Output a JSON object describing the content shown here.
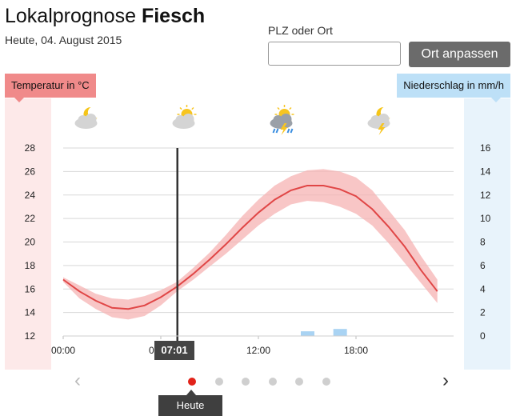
{
  "header": {
    "title_prefix": "Lokalprognose",
    "title_place": "Fiesch",
    "date": "Heute, 04. August 2015"
  },
  "search": {
    "label": "PLZ oder Ort",
    "value": "",
    "placeholder": "",
    "button_label": "Ort anpassen"
  },
  "axes": {
    "left_label": "Temperatur in °C",
    "right_label": "Niederschlag in mm/h",
    "now_time": "07:01"
  },
  "weather_icons": [
    {
      "name": "moon-cloud-icon",
      "hour": 1.5
    },
    {
      "name": "sun-cloud-icon",
      "hour": 7.5
    },
    {
      "name": "thunderstorm-rain-icon",
      "hour": 13.5
    },
    {
      "name": "moon-lightning-icon",
      "hour": 19.5
    }
  ],
  "pager": {
    "dots": 6,
    "active": 0,
    "active_label": "Heute"
  },
  "colors": {
    "temp_line": "#e04646",
    "temp_band": "#f5b3b3",
    "precip_bar": "#a9d3f3",
    "now_line": "#333333",
    "dot_active": "#e2231a"
  },
  "chart_data": {
    "type": "line",
    "x_unit": "hour",
    "x_ticks": [
      {
        "hour": 0,
        "label": "00:00"
      },
      {
        "hour": 6,
        "label": "06:00"
      },
      {
        "hour": 12,
        "label": "12:00"
      },
      {
        "hour": 18,
        "label": "18:00"
      }
    ],
    "xlim": [
      0,
      24
    ],
    "now_hour": 7.02,
    "ylim_left": [
      12,
      28
    ],
    "yticks_left": [
      12,
      14,
      16,
      18,
      20,
      22,
      24,
      26,
      28
    ],
    "ylim_right": [
      0,
      16
    ],
    "yticks_right": [
      0,
      2,
      4,
      6,
      8,
      10,
      12,
      14,
      16
    ],
    "temperature": {
      "x": [
        0,
        1,
        2,
        3,
        4,
        5,
        6,
        7,
        8,
        9,
        10,
        11,
        12,
        13,
        14,
        15,
        16,
        17,
        18,
        19,
        20,
        21,
        22,
        23
      ],
      "mid": [
        16.8,
        15.8,
        15.0,
        14.4,
        14.3,
        14.6,
        15.3,
        16.2,
        17.3,
        18.5,
        19.8,
        21.2,
        22.5,
        23.6,
        24.4,
        24.8,
        24.8,
        24.5,
        23.9,
        22.8,
        21.3,
        19.6,
        17.6,
        15.8
      ],
      "low": [
        16.6,
        15.2,
        14.3,
        13.6,
        13.4,
        13.7,
        14.6,
        15.8,
        16.8,
        17.9,
        19.0,
        20.2,
        21.4,
        22.4,
        23.2,
        23.5,
        23.4,
        23.0,
        22.4,
        21.4,
        19.9,
        18.2,
        16.5,
        14.8
      ],
      "high": [
        17.0,
        16.3,
        15.6,
        15.2,
        15.1,
        15.4,
        15.9,
        16.6,
        17.8,
        19.1,
        20.6,
        22.2,
        23.6,
        24.8,
        25.6,
        26.1,
        26.2,
        26.0,
        25.5,
        24.4,
        22.7,
        21.0,
        18.8,
        16.8
      ]
    },
    "precipitation": {
      "x": [
        15,
        17
      ],
      "values": [
        0.4,
        0.6
      ]
    }
  }
}
